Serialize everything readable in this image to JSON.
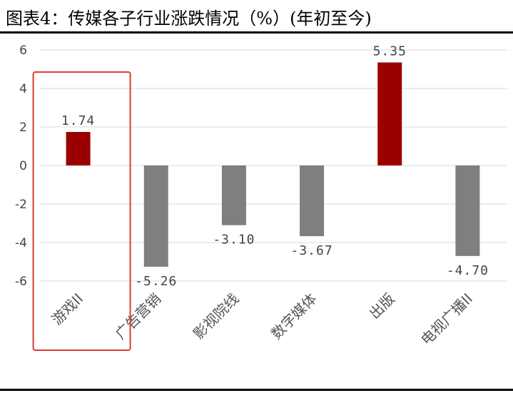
{
  "header": {
    "title": "图表4：传媒各子行业涨跌情况（%）(年初至今)"
  },
  "chart_data": {
    "type": "bar",
    "title": "图表4：传媒各子行业涨跌情况（%）(年初至今)",
    "categories": [
      "游戏II",
      "广告营销",
      "影视院线",
      "数字媒体",
      "出版",
      "电视广播II"
    ],
    "values": [
      1.74,
      -5.26,
      -3.1,
      -3.67,
      5.35,
      -4.7
    ],
    "value_labels": [
      "1.74",
      "-5.26",
      "-3.10",
      "-3.67",
      "5.35",
      "-4.70"
    ],
    "ylim": [
      -6,
      6
    ],
    "yticks": [
      6,
      4,
      2,
      0,
      -2,
      -4,
      -6
    ],
    "ytick_labels": [
      "6",
      "4",
      "2",
      "0",
      "-2",
      "-4",
      "-6"
    ],
    "grid": true,
    "highlight_category": "游戏II",
    "colors": {
      "positive": "#9b0000",
      "negative": "#7f7f7f",
      "grid": "#d9d9d9",
      "highlight_box": "#e03a2f"
    }
  }
}
